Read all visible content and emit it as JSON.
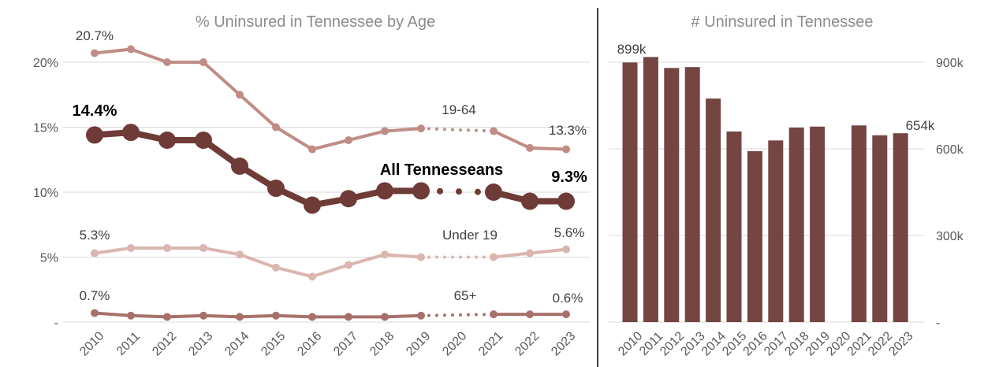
{
  "colors": {
    "all": "#6f3b37",
    "age19_64": "#c08c86",
    "under19": "#dbb5b0",
    "age65": "#a8706b",
    "bar": "#744541",
    "grid": "#d9d9d9",
    "divider": "#000000"
  },
  "chart_data": [
    {
      "type": "line",
      "title": "% Uninsured in Tennessee by Age",
      "x": [
        "2010",
        "2011",
        "2012",
        "2013",
        "2014",
        "2015",
        "2016",
        "2017",
        "2018",
        "2019",
        "2020",
        "2021",
        "2022",
        "2023"
      ],
      "yticks": [
        "-",
        "5%",
        "10%",
        "15%",
        "20%"
      ],
      "ylim": [
        0,
        21
      ],
      "grid": true,
      "note": "2020 values not shown; dotted connector between 2019 and 2021",
      "series": [
        {
          "name": "19-64",
          "values": [
            20.7,
            21.0,
            20.0,
            20.0,
            17.5,
            15.0,
            13.3,
            14.0,
            14.7,
            14.9,
            null,
            14.7,
            13.4,
            13.3
          ],
          "start_label": "20.7%",
          "end_label": "13.3%"
        },
        {
          "name": "All Tennesseans",
          "values": [
            14.4,
            14.6,
            14.0,
            14.0,
            12.0,
            10.3,
            9.0,
            9.5,
            10.1,
            10.1,
            null,
            10.0,
            9.3,
            9.3
          ],
          "start_label": "14.4%",
          "end_label": "9.3%"
        },
        {
          "name": "Under 19",
          "values": [
            5.3,
            5.7,
            5.7,
            5.7,
            5.2,
            4.2,
            3.5,
            4.4,
            5.2,
            5.0,
            null,
            5.0,
            5.3,
            5.6
          ],
          "start_label": "5.3%",
          "end_label": "5.6%"
        },
        {
          "name": "65+",
          "values": [
            0.7,
            0.5,
            0.4,
            0.5,
            0.4,
            0.5,
            0.4,
            0.4,
            0.4,
            0.5,
            null,
            0.6,
            0.6,
            0.6
          ],
          "start_label": "0.7%",
          "end_label": "0.6%"
        }
      ]
    },
    {
      "type": "bar",
      "title": "# Uninsured in Tennessee",
      "categories": [
        "2010",
        "2011",
        "2012",
        "2013",
        "2014",
        "2015",
        "2016",
        "2017",
        "2018",
        "2019",
        "2020",
        "2021",
        "2022",
        "2023"
      ],
      "values": [
        899,
        918,
        880,
        883,
        774,
        660,
        592,
        629,
        674,
        677,
        null,
        681,
        647,
        654
      ],
      "units": "thousands",
      "yticks": [
        "-",
        "300k",
        "600k",
        "900k"
      ],
      "ylim": [
        0,
        950
      ],
      "grid": true,
      "start_label": "899k",
      "end_label": "654k"
    }
  ]
}
